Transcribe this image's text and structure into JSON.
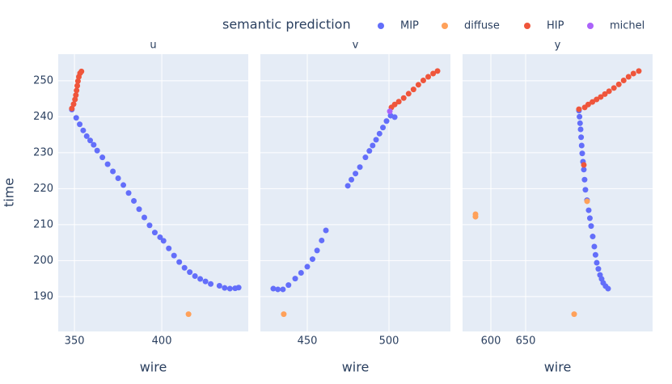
{
  "chart_data": {
    "type": "scatter",
    "legend_title": "semantic prediction",
    "legend": [
      {
        "name": "MIP",
        "color": "#636efa"
      },
      {
        "name": "diffuse",
        "color": "#ffa15a"
      },
      {
        "name": "HIP",
        "color": "#ef553b"
      },
      {
        "name": "michel",
        "color": "#ab63fa"
      }
    ],
    "y_label": "time",
    "ylim": [
      180.3,
      257.4
    ],
    "yticks": [
      190,
      200,
      210,
      220,
      230,
      240,
      250
    ],
    "grid": true,
    "facets": [
      {
        "title": "u",
        "x_label": "wire",
        "xlim": [
          340.7,
          449.5
        ],
        "xticks": [
          350,
          400
        ],
        "series": [
          {
            "x": [
              348.5,
              351,
              353,
              355,
              357,
              359,
              361,
              363,
              366,
              369,
              372,
              375,
              378,
              381,
              384,
              387,
              390,
              393,
              396,
              399,
              401,
              404,
              407,
              410,
              413,
              416,
              419,
              422,
              425,
              428,
              433,
              436,
              439,
              442,
              444
            ],
            "values": [
              242,
              239.7,
              237.9,
              236.2,
              234.6,
              233.4,
              232.2,
              230.6,
              228.7,
              226.8,
              224.8,
              222.9,
              221,
              218.8,
              216.6,
              214.3,
              212,
              209.8,
              207.8,
              206.5,
              205.5,
              203.4,
              201.4,
              199.6,
              198,
              196.8,
              195.7,
              194.9,
              194.2,
              193.5,
              193,
              192.4,
              192.2,
              192.3,
              192.5
            ]
          },
          {
            "x": [
              415.3
            ],
            "values": [
              185.1
            ]
          },
          {
            "x": [
              348.5,
              349.5,
              350.3,
              350.8,
              351.2,
              351.6,
              352,
              352.5,
              353.2,
              354
            ],
            "values": [
              242.3,
              243.5,
              244.8,
              246,
              247.3,
              248.6,
              249.9,
              251.1,
              252.1,
              252.6
            ]
          },
          {
            "x": [],
            "values": []
          }
        ]
      },
      {
        "title": "v",
        "x_label": "wire",
        "xlim": [
          421.3,
          537.6
        ],
        "xticks": [
          450,
          500
        ],
        "series": [
          {
            "x": [
              429.2,
              432,
              435.1,
              438.5,
              442.6,
              446.2,
              450,
              453.2,
              456,
              458.8,
              461.4,
              474.8,
              477,
              479.5,
              482.2,
              485.6,
              488,
              490,
              492.1,
              494.2,
              496.3,
              498.5,
              501,
              503.5
            ],
            "values": [
              192.2,
              192,
              192,
              193.2,
              195,
              196.6,
              198.3,
              200.4,
              202.8,
              205.6,
              208.4,
              220.8,
              222.5,
              224.2,
              226,
              228.7,
              230.5,
              232,
              233.6,
              235.3,
              237,
              238.8,
              240.3,
              239.9
            ]
          },
          {
            "x": [
              435.6
            ],
            "values": [
              185.1
            ]
          },
          {
            "x": [
              501.5,
              503.5,
              506,
              509,
              512,
              515,
              518,
              521,
              524,
              527,
              529.7
            ],
            "values": [
              242.6,
              243.4,
              244.2,
              245.2,
              246.4,
              247.6,
              248.9,
              250.1,
              251.1,
              252,
              252.7
            ]
          },
          {
            "x": [
              500.5
            ],
            "values": [
              241.5
            ]
          }
        ]
      },
      {
        "title": "y",
        "x_label": "wire",
        "xlim": [
          559.3,
          832.6
        ],
        "xticks": [
          600,
          650
        ],
        "series": [
          {
            "x": [
              726.7,
              727.5,
              728.3,
              729.1,
              729.8,
              730.6,
              731.4,
              732.5,
              733.7,
              734.8,
              736,
              738.3,
              740.7,
              742.4,
              744.2,
              746.5,
              748.8,
              750.5,
              752.3,
              754.6,
              757,
              759.3,
              761.6,
              765,
              768.6
            ],
            "values": [
              241.7,
              240,
              238.2,
              236.5,
              234.3,
              232,
              229.8,
              227.5,
              225.3,
              222.5,
              219.7,
              216.8,
              214,
              211.8,
              209.6,
              206.7,
              203.9,
              201.6,
              199.4,
              197.7,
              196,
              194.9,
              193.8,
              192.9,
              192.2
            ]
          },
          {
            "x": [
              738.4,
              577.9,
              577.9,
              719.8
            ],
            "values": [
              216.5,
              212.9,
              212.2,
              185.1
            ]
          },
          {
            "x": [
              726.7,
              733.7,
              735,
              740,
              746,
              752,
              758,
              764,
              770,
              777,
              784,
              791,
              798,
              805,
              812.8
            ],
            "values": [
              242.1,
              226.6,
              242.6,
              243.4,
              244.1,
              244.8,
              245.5,
              246.3,
              247.1,
              248,
              249,
              250.1,
              251.1,
              252,
              252.7
            ]
          },
          {
            "x": [],
            "values": []
          }
        ]
      }
    ]
  }
}
